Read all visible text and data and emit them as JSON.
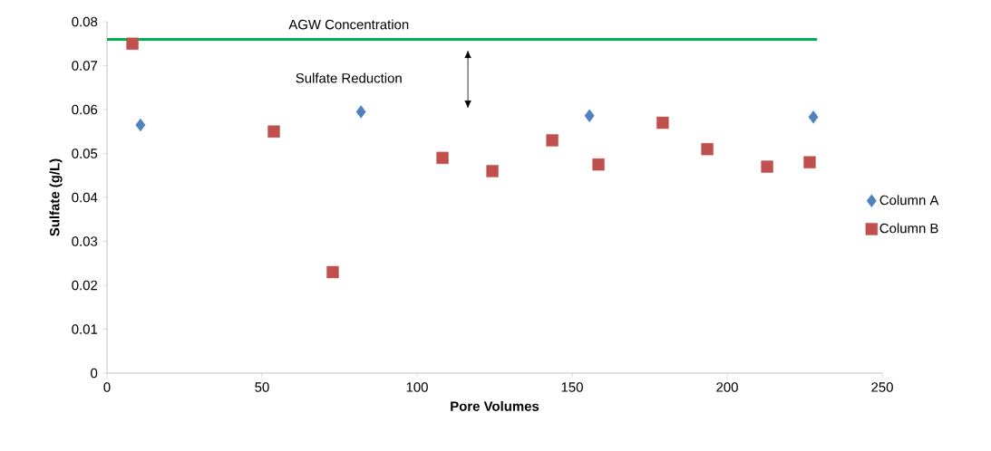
{
  "chart_data": {
    "type": "scatter",
    "xlabel": "Pore Volumes",
    "ylabel": "Sulfate (g/L)",
    "xlim": [
      0,
      250
    ],
    "xticks": [
      0,
      50,
      100,
      150,
      200,
      250
    ],
    "ylim": [
      0,
      0.08
    ],
    "yticks": [
      0,
      0.01,
      0.02,
      0.03,
      0.04,
      0.05,
      0.06,
      0.07,
      0.08
    ],
    "legend": "right",
    "grid": false,
    "annotations": [
      "AGW Concentration",
      "Sulfate Reduction"
    ],
    "series": [
      {
        "name": "Column A",
        "color": "#4f81bd",
        "marker": "diamond",
        "x": [
          10.8,
          81.9,
          155.6,
          227.8
        ],
        "values": [
          0.0565,
          0.0595,
          0.0586,
          0.0583
        ]
      },
      {
        "name": "Column B",
        "color": "#c0504d",
        "marker": "square",
        "x": [
          8.2,
          53.8,
          72.8,
          108.2,
          124.3,
          143.6,
          158.5,
          179.2,
          193.6,
          212.9,
          226.6
        ],
        "values": [
          0.075,
          0.055,
          0.023,
          0.049,
          0.046,
          0.053,
          0.0475,
          0.057,
          0.051,
          0.047,
          0.048
        ]
      },
      {
        "type": "line",
        "color": "#00b050",
        "line_style": "solid",
        "marker": "none",
        "x": [
          0,
          229
        ],
        "values": [
          0.076,
          0.076
        ]
      }
    ]
  }
}
